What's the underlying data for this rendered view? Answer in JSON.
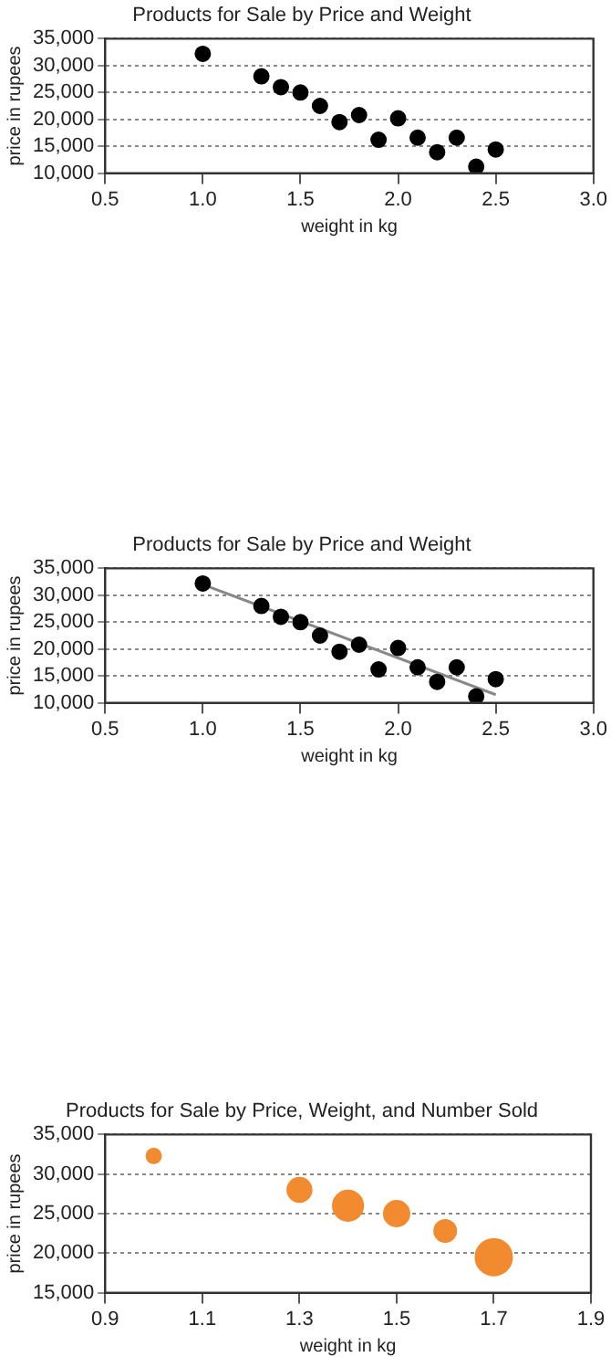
{
  "chart_data": [
    {
      "type": "scatter",
      "title": "Products for Sale by Price and Weight",
      "xlabel": "weight in kg",
      "ylabel": "price in rupees",
      "xlim": [
        0.5,
        3.0
      ],
      "xticks": [
        {
          "value": 0.5,
          "label": "0.5"
        },
        {
          "value": 1,
          "label": "1.0"
        },
        {
          "value": 1.5,
          "label": "1.5"
        },
        {
          "value": 2,
          "label": "2.0"
        },
        {
          "value": 2.5,
          "label": "2.5"
        },
        {
          "value": 3,
          "label": "3.0"
        }
      ],
      "ylim": [
        10000,
        35000
      ],
      "yticks": [
        {
          "value": 10000,
          "label": "10,000"
        },
        {
          "value": 15000,
          "label": "15,000"
        },
        {
          "value": 20000,
          "label": "20,000"
        },
        {
          "value": 25000,
          "label": "25,000"
        },
        {
          "value": 30000,
          "label": "30,000"
        },
        {
          "value": 35000,
          "label": "35,000"
        }
      ],
      "grid": "y",
      "legend": false,
      "marker": "circle",
      "series": [
        {
          "color": "#000000",
          "x": [
            1.0,
            1.3,
            1.4,
            1.5,
            1.6,
            1.7,
            1.8,
            1.9,
            2.0,
            2.1,
            2.2,
            2.3,
            2.4,
            2.5
          ],
          "values": [
            32200,
            28000,
            26000,
            25000,
            22500,
            19500,
            20800,
            16200,
            20200,
            16600,
            13900,
            16600,
            11200,
            14400
          ]
        }
      ]
    },
    {
      "type": "scatter",
      "title": "Products for Sale by Price and Weight",
      "xlabel": "weight in kg",
      "ylabel": "price in rupees",
      "xlim": [
        0.5,
        3.0
      ],
      "xticks": [
        {
          "value": 0.5,
          "label": "0.5"
        },
        {
          "value": 1,
          "label": "1.0"
        },
        {
          "value": 1.5,
          "label": "1.5"
        },
        {
          "value": 2,
          "label": "2.0"
        },
        {
          "value": 2.5,
          "label": "2.5"
        },
        {
          "value": 3,
          "label": "3.0"
        }
      ],
      "ylim": [
        10000,
        35000
      ],
      "yticks": [
        {
          "value": 10000,
          "label": "10,000"
        },
        {
          "value": 15000,
          "label": "15,000"
        },
        {
          "value": 20000,
          "label": "20,000"
        },
        {
          "value": 25000,
          "label": "25,000"
        },
        {
          "value": 30000,
          "label": "30,000"
        },
        {
          "value": 35000,
          "label": "35,000"
        }
      ],
      "grid": "y",
      "legend": false,
      "marker": "circle",
      "series": [
        {
          "color": "#000000",
          "x": [
            1.0,
            1.3,
            1.4,
            1.5,
            1.6,
            1.7,
            1.8,
            1.9,
            2.0,
            2.1,
            2.2,
            2.3,
            2.4,
            2.5
          ],
          "values": [
            32200,
            28000,
            26000,
            25000,
            22500,
            19500,
            20800,
            16200,
            20200,
            16600,
            13900,
            16600,
            11200,
            14400
          ]
        },
        {
          "type": "line",
          "color": "#888888",
          "marker": "none",
          "x": [
            1.0,
            2.5
          ],
          "values": [
            32000,
            11500
          ]
        }
      ]
    },
    {
      "type": "bubble",
      "title": "Products for Sale by Price, Weight, and Number Sold",
      "xlabel": "weight in kg",
      "ylabel": "price in rupees",
      "xlim": [
        0.9,
        1.9
      ],
      "xticks": [
        {
          "value": 0.9,
          "label": "0.9"
        },
        {
          "value": 1.1,
          "label": "1.1"
        },
        {
          "value": 1.3,
          "label": "1.3"
        },
        {
          "value": 1.5,
          "label": "1.5"
        },
        {
          "value": 1.7,
          "label": "1.7"
        },
        {
          "value": 1.9,
          "label": "1.9"
        }
      ],
      "ylim": [
        15000,
        35000
      ],
      "yticks": [
        {
          "value": 15000,
          "label": "15,000"
        },
        {
          "value": 20000,
          "label": "20,000"
        },
        {
          "value": 25000,
          "label": "25,000"
        },
        {
          "value": 30000,
          "label": "30,000"
        },
        {
          "value": 35000,
          "label": "35,000"
        }
      ],
      "grid": "y",
      "legend": false,
      "series": [
        {
          "color": "#f28a30",
          "x": [
            1.0,
            1.3,
            1.4,
            1.5,
            1.6,
            1.7
          ],
          "values": [
            32300,
            28000,
            26000,
            25000,
            22800,
            19500
          ],
          "sizes": [
            0.16,
            0.44,
            0.69,
            0.49,
            0.36,
            1
          ]
        }
      ]
    }
  ]
}
